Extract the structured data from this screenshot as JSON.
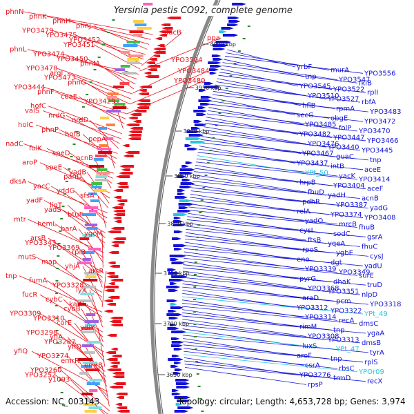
{
  "title": "Yersinia pestis CO92, complete genome",
  "footer": {
    "accession": "Accession: NC_003143",
    "summary": "Topology: circular; Length: 4,653,728 bp; Genes: 3,974"
  },
  "colors": {
    "reverse_strand": "#e8101a",
    "forward_strand": "#1212d8",
    "rna": "#22c8e0",
    "backbone": "#888888",
    "gc_marker": "#2a8a2a"
  },
  "ticks": [
    "4000 kbp",
    "3950 kbp",
    "3900 kbp",
    "3850 kbp",
    "3800 kbp",
    "3750 kbp",
    "3700 kbp",
    "3650 kbp"
  ],
  "left_labels": [
    "phnN",
    "phnK",
    "phnH",
    "phnJ",
    "YPO3479",
    "YPO3475",
    "YPO3452",
    "YPO3451",
    "phnL",
    "YPO3474",
    "YPO3450",
    "phnM",
    "YPO3478",
    "argI",
    "YPO3473",
    "phnG",
    "YPO3444",
    "phnF",
    "coaE",
    "YPO3429",
    "hofC",
    "valS",
    "nrdG",
    "nrdD",
    "holC",
    "phnP",
    "hofB",
    "pepA",
    "nadC",
    "folK",
    "speD",
    "pcnB",
    "aroP",
    "speE",
    "yadB",
    "panD",
    "dksA",
    "yacC",
    "yddG",
    "sfsA",
    "yadF",
    "ligT",
    "yadS",
    "btuF",
    "mtr",
    "hemL",
    "barA",
    "ygcM",
    "arsB",
    "YPO3343",
    "YPO3369",
    "rpiB",
    "mutS",
    "map",
    "yhjA",
    "arsR",
    "tnp",
    "fumA",
    "YPO3328",
    "lyx",
    "fucR",
    "cybC",
    "katY",
    "cybB",
    "YPO3309",
    "YPO3310",
    "corE",
    "ydiY",
    "YPO3298",
    "yfiA",
    "YPO3287",
    "yfiO",
    "yfiQ",
    "YPO3274",
    "emrR",
    "emrB",
    "YPO3260",
    "YPO3252",
    "y1093",
    "dacB",
    "ppa",
    "YPO3504",
    "YPO3484",
    "YPO3480"
  ],
  "right_labels": [
    "yrbF",
    "murA",
    "YPO3556",
    "tnp",
    "YPO3547",
    "fklB",
    "YPO3545",
    "YPO3522",
    "rplI",
    "YPO3510",
    "YPO3527",
    "rbfA",
    "hflB",
    "rpmA",
    "YPO3483",
    "secG",
    "obgE",
    "YPO3472",
    "YPO3485",
    "folP",
    "YPO3470",
    "YPO3482",
    "YPO3447",
    "YPO3466",
    "YPO3476",
    "YPO3440",
    "YPO3445",
    "YPO3467",
    "guaC",
    "tnp",
    "YPO3437",
    "intB",
    "aceE",
    "YPt_50",
    "yacK",
    "YPO3414",
    "hrpB",
    "YPO3404",
    "aceF",
    "fhuD",
    "yadH",
    "acnB",
    "pdhR",
    "YPO3387",
    "yadG",
    "relA",
    "YPO3374",
    "YPO3408",
    "yadO",
    "mrcB",
    "fhuB",
    "cysI",
    "sodC",
    "gsrA",
    "ftsB",
    "yqeA",
    "fhuC",
    "rpoS",
    "ygbE",
    "cysJ",
    "eno",
    "dgt",
    "yadU",
    "YPO3339",
    "YPO3349",
    "surE",
    "pyrG",
    "dhaK",
    "truD",
    "YPO3368",
    "YPO3351",
    "nlpD",
    "araD",
    "pcm",
    "YPO3318",
    "YPO3312",
    "YPO3322",
    "YPt_49",
    "YPO3314",
    "recA",
    "dmsC",
    "rimM",
    "tnp",
    "ygaA",
    "YPO3308",
    "YPO3313",
    "dmsB",
    "luxS",
    "YPt_47",
    "tyrA",
    "aroF",
    "tnp",
    "rplS",
    "csrA",
    "rbsC",
    "YPOr09",
    "YPO3276",
    "trmD",
    "recX",
    "rpsP"
  ]
}
